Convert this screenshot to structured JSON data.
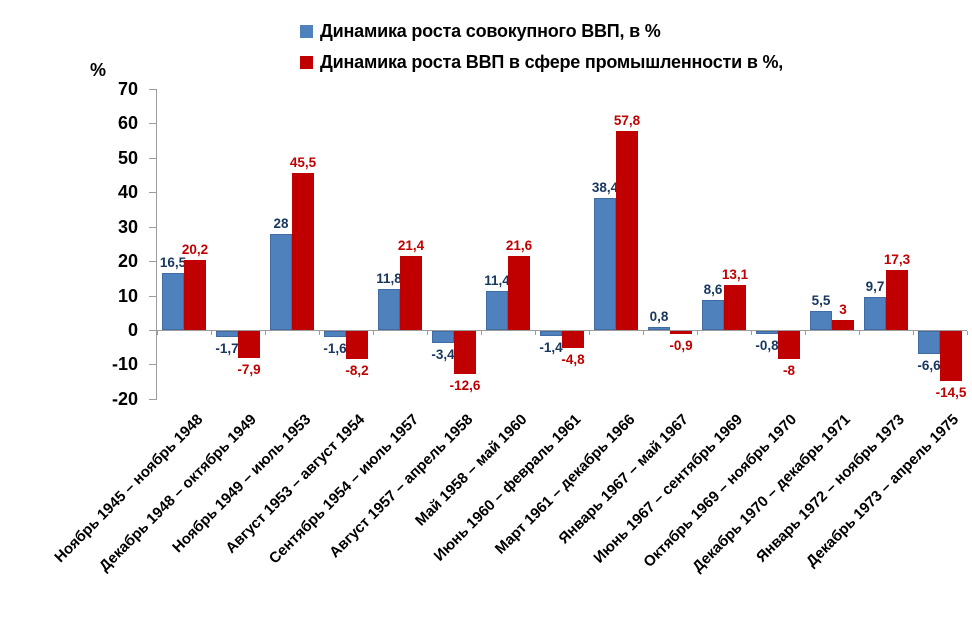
{
  "chart_data": {
    "type": "bar",
    "title": "",
    "ylabel": "%",
    "xlabel": "",
    "ylim": [
      -20,
      70
    ],
    "yticks": [
      70,
      60,
      50,
      40,
      30,
      20,
      10,
      0,
      -10,
      -20
    ],
    "ytick_labels": [
      "70",
      "60",
      "50",
      "40",
      "30",
      "20",
      "10",
      "0",
      "-10",
      "-20"
    ],
    "grid": false,
    "legend_position": "top",
    "axis_color": "#9c9c9c",
    "categories": [
      "Ноябрь 1945 – ноябрь 1948",
      "Декабрь 1948 – октябрь 1949",
      "Ноябрь 1949 – июль 1953",
      "Август 1953 – август 1954",
      "Сентябрь 1954 – июль 1957",
      "Август 1957 – апрель 1958",
      "Май 1958 – май 1960",
      "Июнь 1960 – февраль 1961",
      "Март 1961 – декабрь 1966",
      "Январь 1967 – май 1967",
      "Июнь 1967 – сентябрь 1969",
      "Октябрь 1969 – ноябрь 1970",
      "Декабрь 1970 – декабрь 1971",
      "Январь 1972 – ноябрь 1973",
      "Декабрь 1973 – апрель 1975"
    ],
    "series": [
      {
        "name": "Динамика роста совокупного ВВП, в %",
        "color": "#4f81bd",
        "label_color": "#17375e",
        "values": [
          16.5,
          -1.7,
          28,
          -1.6,
          11.8,
          -3.4,
          11.4,
          -1.4,
          38.4,
          0.8,
          8.6,
          -0.8,
          5.5,
          9.7,
          -6.6
        ],
        "labels": [
          "16,5",
          "-1,7",
          "28",
          "-1,6",
          "11,8",
          "-3,4",
          "11,4",
          "-1,4",
          "38,4",
          "0,8",
          "8,6",
          "-0,8",
          "5,5",
          "9,7",
          "-6,6"
        ]
      },
      {
        "name": "Динамика роста ВВП в сфере промышленности в %,",
        "color": "#c00000",
        "label_color": "#c00000",
        "values": [
          20.2,
          -7.9,
          45.5,
          -8.2,
          21.4,
          -12.6,
          21.6,
          -4.8,
          57.8,
          -0.9,
          13.1,
          -8,
          3,
          17.3,
          -14.5
        ],
        "labels": [
          "20,2",
          "-7,9",
          "45,5",
          "-8,2",
          "21,4",
          "-12,6",
          "21,6",
          "-4,8",
          "57,8",
          "-0,9",
          "13,1",
          "-8",
          "3",
          "17,3",
          "-14,5"
        ]
      }
    ]
  }
}
